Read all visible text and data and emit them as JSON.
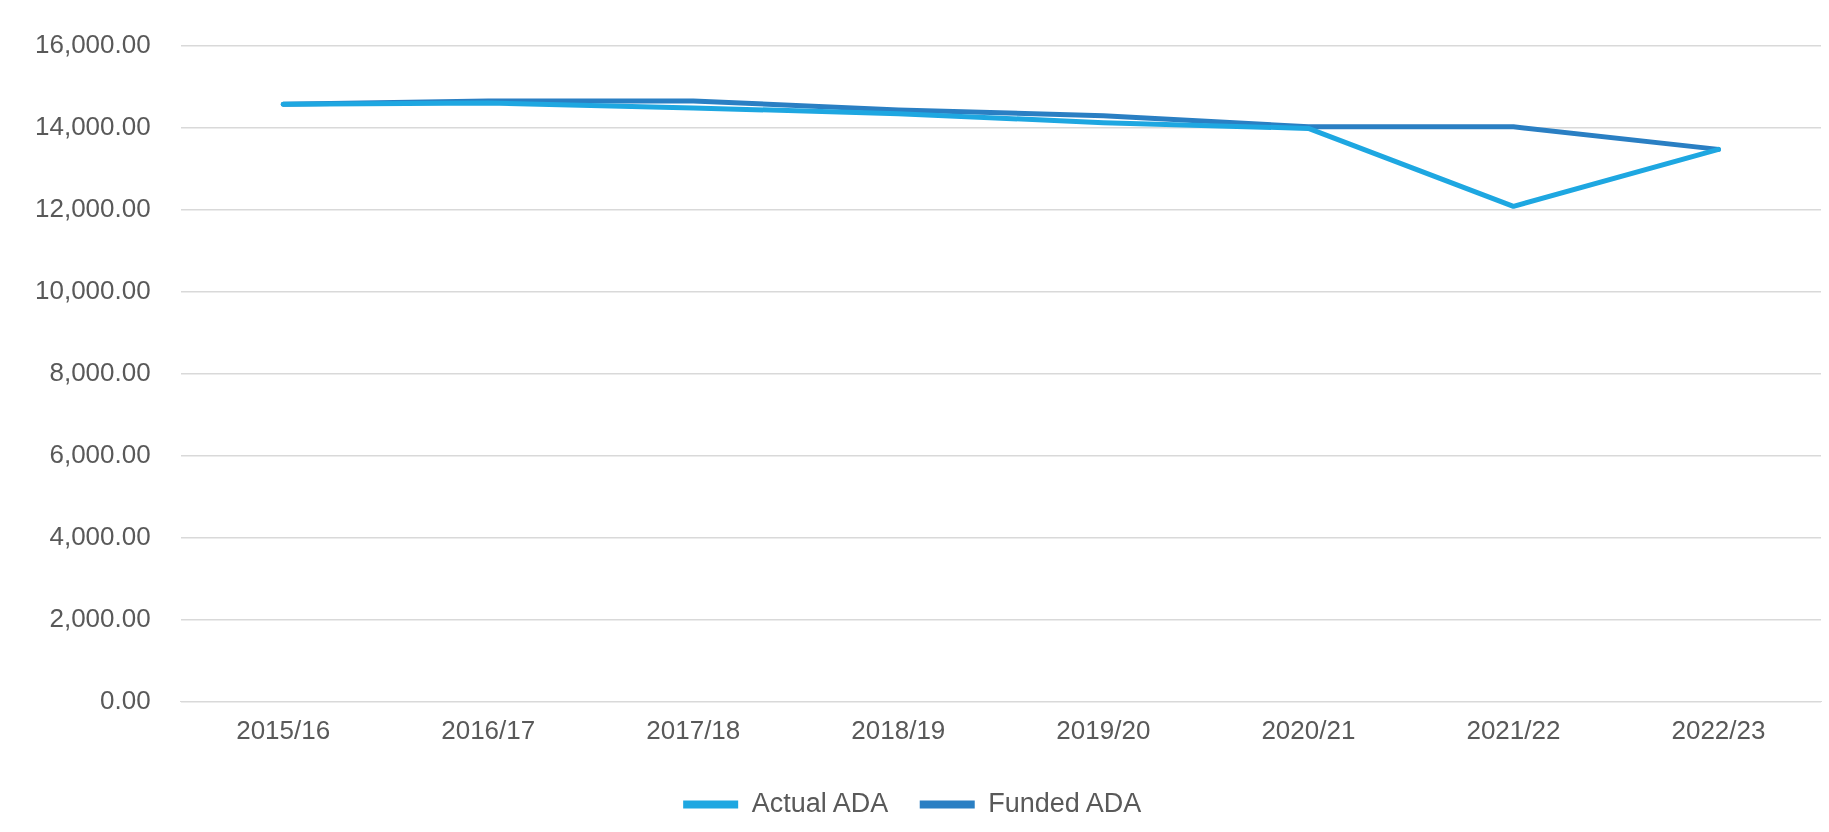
{
  "chart_data": {
    "type": "line",
    "categories": [
      "2015/16",
      "2016/17",
      "2017/18",
      "2018/19",
      "2019/20",
      "2020/21",
      "2021/22",
      "2022/23"
    ],
    "series": [
      {
        "name": "Actual ADA",
        "color": "#1ea7e1",
        "values": [
          14570,
          14600,
          14480,
          14340,
          14120,
          13980,
          12080,
          13470
        ]
      },
      {
        "name": "Funded ADA",
        "color": "#2a7fc3",
        "values": [
          14570,
          14650,
          14650,
          14430,
          14290,
          14020,
          14020,
          13470
        ]
      }
    ],
    "ylim": [
      0,
      16000
    ],
    "yticks": [
      {
        "value": 0,
        "label": "0.00"
      },
      {
        "value": 2000,
        "label": "2,000.00"
      },
      {
        "value": 4000,
        "label": "4,000.00"
      },
      {
        "value": 6000,
        "label": "6,000.00"
      },
      {
        "value": 8000,
        "label": "8,000.00"
      },
      {
        "value": 10000,
        "label": "10,000.00"
      },
      {
        "value": 12000,
        "label": "12,000.00"
      },
      {
        "value": 14000,
        "label": "14,000.00"
      },
      {
        "value": 16000,
        "label": "16,000.00"
      }
    ],
    "grid": "y",
    "legend": "bottom",
    "marker": "none",
    "line_style": "solid"
  }
}
